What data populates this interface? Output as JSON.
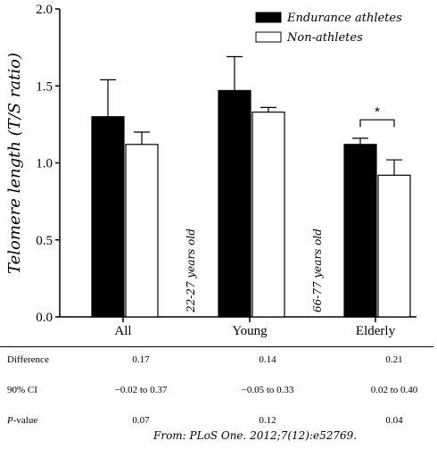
{
  "chart_data": {
    "type": "bar",
    "categories": [
      "All",
      "Young",
      "Elderly"
    ],
    "series": [
      {
        "name": "Endurance athletes",
        "color": "#000000",
        "values": [
          1.3,
          1.47,
          1.12
        ],
        "errors": [
          0.24,
          0.22,
          0.04
        ]
      },
      {
        "name": "Non-athletes",
        "color": "#ffffff",
        "values": [
          1.12,
          1.33,
          0.92
        ],
        "errors": [
          0.08,
          0.03,
          0.1
        ]
      }
    ],
    "ylabel": "Telomere length (T/S ratio)",
    "xlabel": "",
    "ylim": [
      0,
      2.0
    ],
    "yticks": [
      "0.0",
      "0.5",
      "1.0",
      "1.5",
      "2.0"
    ],
    "grid": false,
    "legend_position": "top-right",
    "group_notes": [
      "22-27 years old",
      "66-77 years old"
    ],
    "significance": {
      "group": "Elderly",
      "mark": "*"
    }
  },
  "stats_table": {
    "rows": [
      {
        "label": "Difference",
        "italic_prefix": "",
        "suffix": "",
        "values": [
          "0.17",
          "0.14",
          "0.21"
        ]
      },
      {
        "label": "90% CI",
        "italic_prefix": "",
        "suffix": "",
        "values": [
          "−0.02 to 0.37",
          "−0.05 to 0.33",
          "0.02 to 0.40"
        ]
      },
      {
        "label": "",
        "italic_prefix": "P",
        "suffix": "-value",
        "values": [
          "0.07",
          "0.12",
          "0.04"
        ]
      }
    ]
  },
  "citation": "From: PLoS One. 2012;7(12):e52769."
}
